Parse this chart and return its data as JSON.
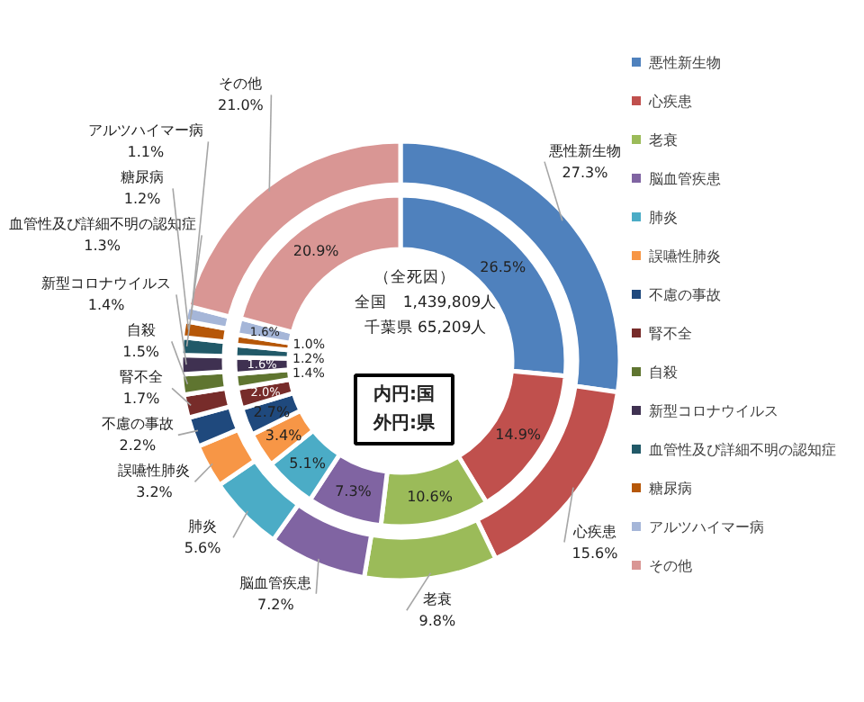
{
  "chart_data": {
    "type": "donut",
    "categories": [
      "悪性新生物",
      "心疾患",
      "老衰",
      "脳血管疾患",
      "肺炎",
      "誤嚥性肺炎",
      "不慮の事故",
      "腎不全",
      "自殺",
      "新型コロナウイルス",
      "血管性及び詳細不明の認知症",
      "糖尿病",
      "アルツハイマー病",
      "その他"
    ],
    "colors": [
      "#4f81bd",
      "#c0504d",
      "#9bbb59",
      "#8064a2",
      "#4bacc6",
      "#f79646",
      "#1f497d",
      "#772c2a",
      "#5f7530",
      "#3f3151",
      "#215968",
      "#b65708",
      "#a5b6d8",
      "#d99694"
    ],
    "series": [
      {
        "values": [
          27.3,
          15.6,
          9.8,
          7.2,
          5.6,
          3.2,
          2.2,
          1.7,
          1.5,
          1.4,
          1.3,
          1.2,
          1.1,
          21.0
        ],
        "value_labels": [
          "27.3%",
          "15.6%",
          "9.8%",
          "7.2%",
          "5.6%",
          "3.2%",
          "2.2%",
          "1.7%",
          "1.5%",
          "1.4%",
          "1.3%",
          "1.2%",
          "1.1%",
          "21.0%"
        ]
      },
      {
        "values": [
          26.5,
          14.9,
          10.6,
          7.3,
          5.1,
          3.4,
          2.7,
          2.0,
          1.4,
          1.6,
          1.2,
          1.0,
          1.6,
          20.9
        ],
        "value_labels": [
          "26.5%",
          "14.9%",
          "10.6%",
          "7.3%",
          "5.1%",
          "3.4%",
          "2.7%",
          "2.0%",
          "1.4%",
          "1.6%",
          "1.2%",
          "1.0%",
          "1.6%",
          "20.9%"
        ]
      }
    ],
    "annotations": [
      "（全死因）",
      "全国　1,439,809人",
      "千葉県 65,209人",
      "内円:国",
      "外円:県"
    ],
    "legend": "right"
  }
}
